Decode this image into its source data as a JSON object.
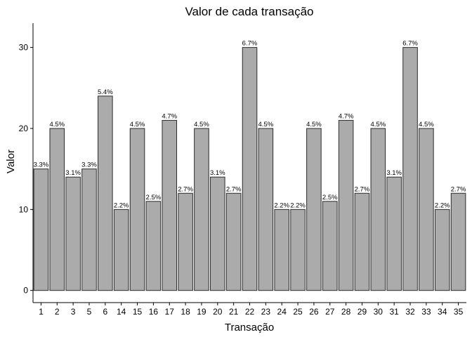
{
  "chart_data": {
    "type": "bar",
    "title": "Valor de cada transação",
    "xlabel": "Transação",
    "ylabel": "Valor",
    "categories": [
      "1",
      "2",
      "3",
      "5",
      "6",
      "14",
      "15",
      "16",
      "17",
      "18",
      "19",
      "20",
      "21",
      "22",
      "23",
      "24",
      "25",
      "26",
      "27",
      "28",
      "29",
      "30",
      "31",
      "32",
      "33",
      "34",
      "35"
    ],
    "values": [
      15,
      20,
      14,
      15,
      24,
      10,
      20,
      11,
      21,
      12,
      20,
      14,
      12,
      30,
      20,
      10,
      10,
      20,
      11,
      21,
      12,
      20,
      14,
      30,
      20,
      10,
      12
    ],
    "data_labels": [
      "3.3%",
      "4.5%",
      "3.1%",
      "3.3%",
      "5.4%",
      "2.2%",
      "4.5%",
      "2.5%",
      "4.7%",
      "2.7%",
      "4.5%",
      "3.1%",
      "2.7%",
      "6.7%",
      "4.5%",
      "2.2%",
      "2.2%",
      "4.5%",
      "2.5%",
      "4.7%",
      "2.7%",
      "4.5%",
      "3.1%",
      "6.7%",
      "4.5%",
      "2.2%",
      "2.7%"
    ],
    "yticks": [
      0,
      10,
      20,
      30
    ],
    "ylim": [
      -1.5,
      33
    ],
    "grid": false,
    "legend": "none",
    "bar_color": "#ababab",
    "bar_border_color": "#2b2b2b"
  }
}
